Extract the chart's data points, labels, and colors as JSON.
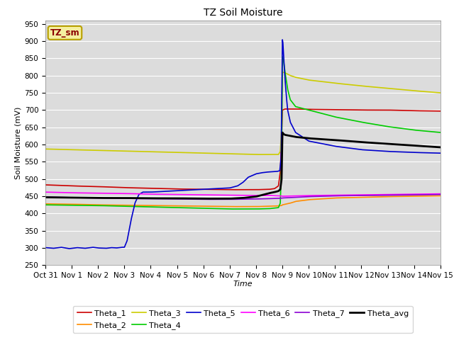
{
  "title": "TZ Soil Moisture",
  "xlabel": "Time",
  "ylabel": "Soil Moisture (mV)",
  "ylim": [
    250,
    960
  ],
  "yticks": [
    250,
    300,
    350,
    400,
    450,
    500,
    550,
    600,
    650,
    700,
    750,
    800,
    850,
    900,
    950
  ],
  "xlim_days": [
    0,
    15
  ],
  "xtick_labels": [
    "Oct 31",
    "Nov 1",
    "Nov 2",
    "Nov 3",
    "Nov 4",
    "Nov 5",
    "Nov 6",
    "Nov 7",
    "Nov 8",
    "Nov 9",
    "Nov 10",
    "Nov 11",
    "Nov 12",
    "Nov 13",
    "Nov 14",
    "Nov 15"
  ],
  "plot_bg": "#dcdcdc",
  "fig_bg": "#ffffff",
  "legend_box_color": "#f5f0a0",
  "legend_box_edge": "#b8a000",
  "legend_box_text_color": "#8b0000",
  "series": {
    "Theta_1": {
      "color": "#cc0000",
      "lw": 1.2
    },
    "Theta_2": {
      "color": "#ff8c00",
      "lw": 1.2
    },
    "Theta_3": {
      "color": "#cccc00",
      "lw": 1.2
    },
    "Theta_4": {
      "color": "#00cc00",
      "lw": 1.2
    },
    "Theta_5": {
      "color": "#0000cc",
      "lw": 1.2
    },
    "Theta_6": {
      "color": "#ff00ff",
      "lw": 1.2
    },
    "Theta_7": {
      "color": "#8b00d3",
      "lw": 1.2
    },
    "Theta_avg": {
      "color": "#000000",
      "lw": 2.0
    }
  }
}
